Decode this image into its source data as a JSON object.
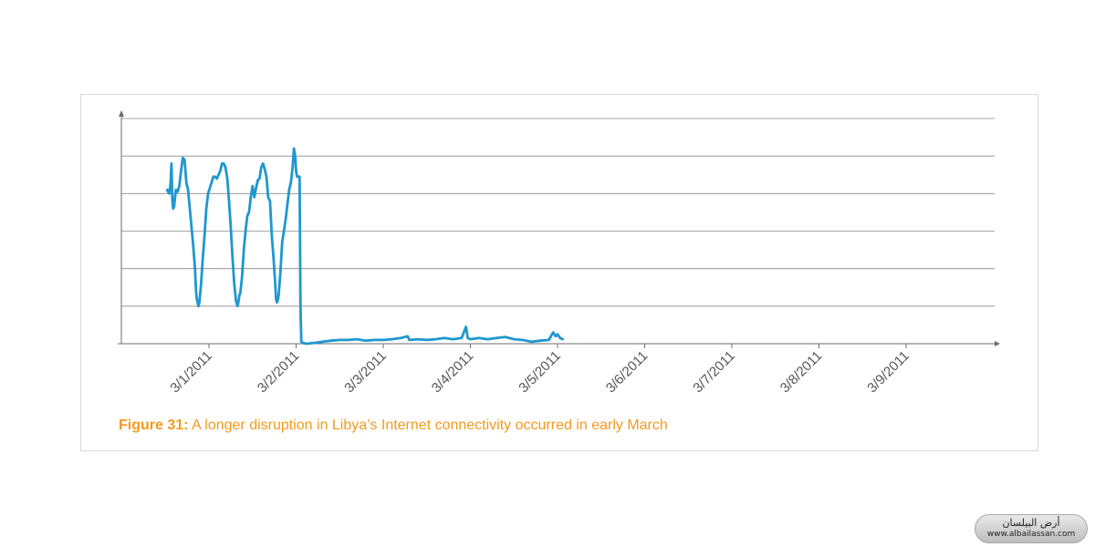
{
  "chart_data": {
    "type": "line",
    "title": "",
    "xlabel": "",
    "ylabel": "",
    "x_tick_labels": [
      "3/1/2011",
      "3/2/2011",
      "3/3/2011",
      "3/4/2011",
      "3/5/2011",
      "3/6/2011",
      "3/7/2011",
      "3/8/2011",
      "3/9/2011"
    ],
    "y_tick_labels": [],
    "ylim": [
      0,
      6
    ],
    "y_gridlines": 6,
    "grid": true,
    "legend": "none",
    "series": [
      {
        "color": "#1f97cf",
        "points": [
          [
            -0.48,
            4.1
          ],
          [
            -0.47,
            4.05
          ],
          [
            -0.455,
            4.0
          ],
          [
            -0.44,
            4.3
          ],
          [
            -0.43,
            4.8
          ],
          [
            -0.425,
            4.3
          ],
          [
            -0.42,
            3.8
          ],
          [
            -0.41,
            3.6
          ],
          [
            -0.4,
            3.65
          ],
          [
            -0.38,
            4.1
          ],
          [
            -0.36,
            4.05
          ],
          [
            -0.34,
            4.2
          ],
          [
            -0.32,
            4.6
          ],
          [
            -0.3,
            4.95
          ],
          [
            -0.28,
            4.9
          ],
          [
            -0.26,
            4.3
          ],
          [
            -0.24,
            4.1
          ],
          [
            -0.22,
            3.6
          ],
          [
            -0.2,
            3.1
          ],
          [
            -0.18,
            2.6
          ],
          [
            -0.16,
            2.0
          ],
          [
            -0.15,
            1.45
          ],
          [
            -0.14,
            1.2
          ],
          [
            -0.13,
            1.1
          ],
          [
            -0.12,
            1.0
          ],
          [
            -0.11,
            1.1
          ],
          [
            -0.09,
            1.6
          ],
          [
            -0.07,
            2.3
          ],
          [
            -0.05,
            2.9
          ],
          [
            -0.03,
            3.6
          ],
          [
            -0.01,
            4.0
          ],
          [
            0.01,
            4.15
          ],
          [
            0.03,
            4.3
          ],
          [
            0.05,
            4.45
          ],
          [
            0.07,
            4.45
          ],
          [
            0.09,
            4.4
          ],
          [
            0.11,
            4.5
          ],
          [
            0.13,
            4.6
          ],
          [
            0.15,
            4.8
          ],
          [
            0.17,
            4.8
          ],
          [
            0.19,
            4.7
          ],
          [
            0.21,
            4.4
          ],
          [
            0.23,
            3.8
          ],
          [
            0.25,
            3.1
          ],
          [
            0.27,
            2.3
          ],
          [
            0.29,
            1.6
          ],
          [
            0.31,
            1.15
          ],
          [
            0.32,
            1.05
          ],
          [
            0.33,
            1.0
          ],
          [
            0.34,
            1.15
          ],
          [
            0.35,
            1.3
          ],
          [
            0.36,
            1.35
          ],
          [
            0.38,
            1.8
          ],
          [
            0.4,
            2.5
          ],
          [
            0.42,
            3.0
          ],
          [
            0.44,
            3.4
          ],
          [
            0.46,
            3.5
          ],
          [
            0.48,
            3.9
          ],
          [
            0.5,
            4.2
          ],
          [
            0.52,
            3.9
          ],
          [
            0.54,
            4.15
          ],
          [
            0.56,
            4.35
          ],
          [
            0.58,
            4.4
          ],
          [
            0.6,
            4.7
          ],
          [
            0.62,
            4.8
          ],
          [
            0.64,
            4.65
          ],
          [
            0.66,
            4.45
          ],
          [
            0.68,
            3.9
          ],
          [
            0.7,
            3.8
          ],
          [
            0.72,
            2.9
          ],
          [
            0.74,
            2.3
          ],
          [
            0.76,
            1.6
          ],
          [
            0.77,
            1.2
          ],
          [
            0.78,
            1.1
          ],
          [
            0.79,
            1.15
          ],
          [
            0.8,
            1.3
          ],
          [
            0.82,
            1.9
          ],
          [
            0.84,
            2.7
          ],
          [
            0.86,
            3.0
          ],
          [
            0.88,
            3.3
          ],
          [
            0.9,
            3.7
          ],
          [
            0.92,
            4.1
          ],
          [
            0.94,
            4.3
          ],
          [
            0.96,
            4.7
          ],
          [
            0.975,
            5.2
          ],
          [
            0.99,
            5.0
          ],
          [
            1.0,
            4.6
          ],
          [
            1.01,
            4.45
          ],
          [
            1.04,
            4.45
          ],
          [
            1.05,
            1.0
          ],
          [
            1.06,
            0.05
          ],
          [
            1.08,
            0.02
          ],
          [
            1.12,
            0.0
          ],
          [
            1.2,
            0.02
          ],
          [
            1.3,
            0.05
          ],
          [
            1.4,
            0.08
          ],
          [
            1.5,
            0.1
          ],
          [
            1.6,
            0.1
          ],
          [
            1.7,
            0.12
          ],
          [
            1.8,
            0.08
          ],
          [
            1.9,
            0.1
          ],
          [
            2.0,
            0.1
          ],
          [
            2.1,
            0.12
          ],
          [
            2.2,
            0.15
          ],
          [
            2.28,
            0.2
          ],
          [
            2.3,
            0.1
          ],
          [
            2.4,
            0.12
          ],
          [
            2.5,
            0.1
          ],
          [
            2.6,
            0.12
          ],
          [
            2.7,
            0.15
          ],
          [
            2.8,
            0.12
          ],
          [
            2.9,
            0.15
          ],
          [
            2.95,
            0.45
          ],
          [
            2.97,
            0.15
          ],
          [
            3.0,
            0.12
          ],
          [
            3.1,
            0.15
          ],
          [
            3.2,
            0.12
          ],
          [
            3.3,
            0.15
          ],
          [
            3.4,
            0.18
          ],
          [
            3.5,
            0.12
          ],
          [
            3.6,
            0.1
          ],
          [
            3.7,
            0.05
          ],
          [
            3.8,
            0.08
          ],
          [
            3.9,
            0.1
          ],
          [
            3.95,
            0.3
          ],
          [
            3.98,
            0.2
          ],
          [
            4.0,
            0.25
          ],
          [
            4.03,
            0.15
          ],
          [
            4.06,
            0.12
          ]
        ]
      }
    ]
  },
  "caption": {
    "label": "Figure 31:",
    "text": " A longer disruption in Libya’s Internet connectivity occurred in early March"
  },
  "watermark": {
    "arabic": "أرض البيلسان",
    "url": "www.albailassan.com"
  }
}
